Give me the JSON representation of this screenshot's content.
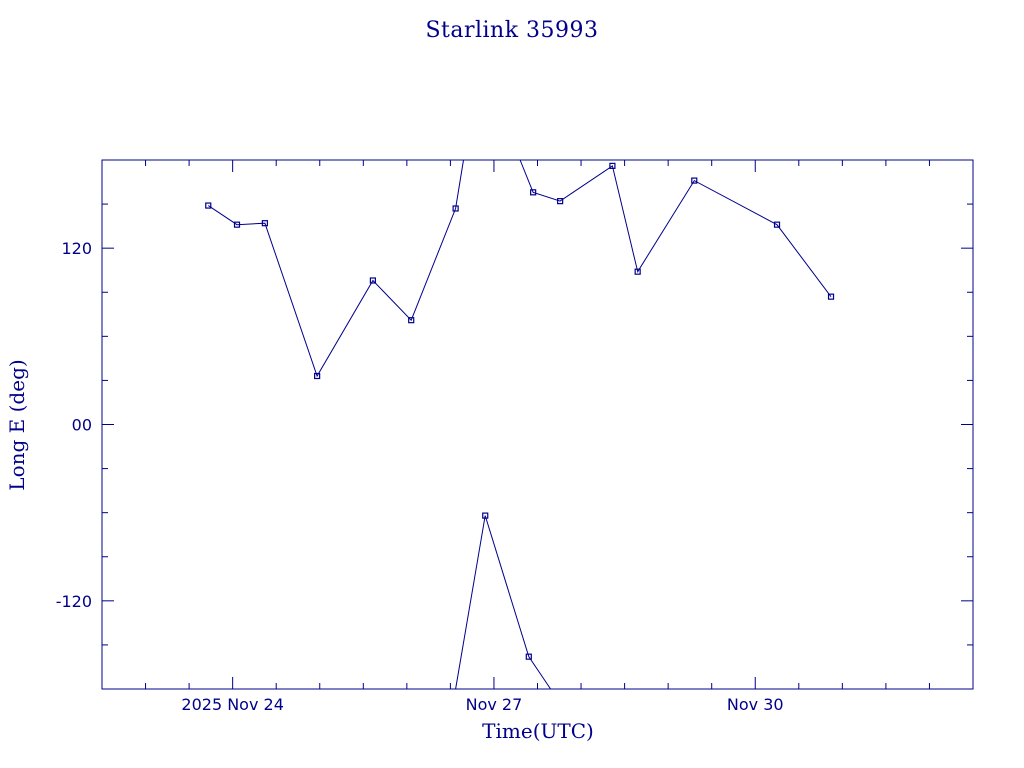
{
  "chart_data": {
    "type": "line",
    "title": "Starlink 35993",
    "xlabel": "Time(UTC)",
    "ylabel": "Long E (deg)",
    "x_unit": "days (2025 Nov)",
    "xlim": [
      22.5,
      32.5
    ],
    "ylim": [
      -180,
      180
    ],
    "x_tick_labels": [
      {
        "x": 24,
        "label": "2025 Nov 24"
      },
      {
        "x": 27,
        "label": "Nov 27"
      },
      {
        "x": 30,
        "label": "Nov 30"
      }
    ],
    "y_tick_labels": [
      {
        "y": 120,
        "label": "120"
      },
      {
        "y": 0,
        "label": "00"
      },
      {
        "y": -120,
        "label": "-120"
      }
    ],
    "x_minor_ticks": [
      22.5,
      23.0,
      23.5,
      24.0,
      24.5,
      25.0,
      25.5,
      26.0,
      26.5,
      27.0,
      27.5,
      28.0,
      28.5,
      29.0,
      29.5,
      30.0,
      30.5,
      31.0,
      31.5,
      32.0,
      32.5
    ],
    "y_minor_ticks": [
      -150,
      -120,
      -90,
      -60,
      -30,
      0,
      30,
      60,
      90,
      120,
      150
    ],
    "grid": false,
    "legend": "none",
    "color": "#00008b",
    "segments": [
      {
        "points": [
          {
            "x": 23.72,
            "y": 149
          },
          {
            "x": 24.05,
            "y": 136
          },
          {
            "x": 24.37,
            "y": 137
          },
          {
            "x": 24.97,
            "y": 33
          },
          {
            "x": 25.61,
            "y": 98
          },
          {
            "x": 26.05,
            "y": 71
          },
          {
            "x": 26.56,
            "y": 147
          },
          {
            "x": 26.65,
            "y": 180
          }
        ]
      },
      {
        "points": [
          {
            "x": 27.3,
            "y": 180
          },
          {
            "x": 27.45,
            "y": 158
          },
          {
            "x": 27.76,
            "y": 152
          },
          {
            "x": 28.36,
            "y": 176
          },
          {
            "x": 28.65,
            "y": 104
          },
          {
            "x": 29.3,
            "y": 166
          },
          {
            "x": 30.25,
            "y": 136
          },
          {
            "x": 30.87,
            "y": 87
          }
        ]
      },
      {
        "points": [
          {
            "x": 26.56,
            "y": -180
          },
          {
            "x": 26.9,
            "y": -62
          },
          {
            "x": 27.4,
            "y": -158
          },
          {
            "x": 27.65,
            "y": -180
          }
        ]
      }
    ],
    "markers": [
      {
        "x": 23.72,
        "y": 149
      },
      {
        "x": 24.05,
        "y": 136
      },
      {
        "x": 24.37,
        "y": 137
      },
      {
        "x": 24.97,
        "y": 33
      },
      {
        "x": 25.61,
        "y": 98
      },
      {
        "x": 26.05,
        "y": 71
      },
      {
        "x": 26.56,
        "y": 147
      },
      {
        "x": 26.9,
        "y": -62
      },
      {
        "x": 27.4,
        "y": -158
      },
      {
        "x": 27.45,
        "y": 158
      },
      {
        "x": 27.76,
        "y": 152
      },
      {
        "x": 28.36,
        "y": 176
      },
      {
        "x": 28.65,
        "y": 104
      },
      {
        "x": 29.3,
        "y": 166
      },
      {
        "x": 30.25,
        "y": 136
      },
      {
        "x": 30.87,
        "y": 87
      }
    ]
  }
}
